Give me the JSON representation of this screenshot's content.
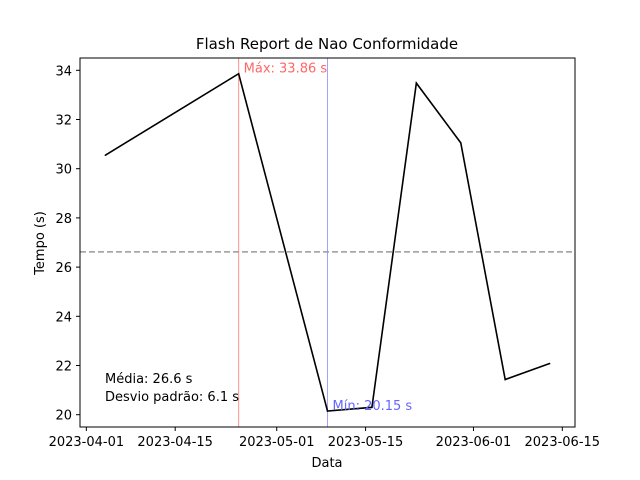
{
  "chart_data": {
    "type": "line",
    "title": "Flash Report de Nao Conformidade",
    "xlabel": "Data",
    "ylabel": "Tempo (s)",
    "x": [
      "2023-04-04",
      "2023-04-25",
      "2023-05-09",
      "2023-05-16",
      "2023-05-23",
      "2023-05-30",
      "2023-06-06",
      "2023-06-13"
    ],
    "series": [
      {
        "values": [
          30.55,
          33.86,
          20.15,
          20.3,
          33.48,
          31.05,
          21.43,
          22.08
        ],
        "color": "#000000"
      }
    ],
    "xlim": [
      "2023-03-31",
      "2023-06-17"
    ],
    "ylim": [
      19.5,
      34.5
    ],
    "xticks": [
      "2023-04-01",
      "2023-04-15",
      "2023-05-01",
      "2023-05-15",
      "2023-06-01",
      "2023-06-15"
    ],
    "yticks": [
      20,
      22,
      24,
      26,
      28,
      30,
      32,
      34
    ],
    "mean_line": {
      "value": 26.62,
      "color": "#999999",
      "style": "dashed"
    },
    "max_marker": {
      "date": "2023-04-25",
      "label": "Máx: 33.86 s",
      "color": "#ff6666"
    },
    "min_marker": {
      "date": "2023-05-09",
      "label": "Mín: 20.15 s",
      "color": "#6666ff"
    },
    "stats": {
      "mean_text": "Média: 26.6 s",
      "std_text": "Desvio padrão: 6.1 s"
    },
    "grid": false
  }
}
